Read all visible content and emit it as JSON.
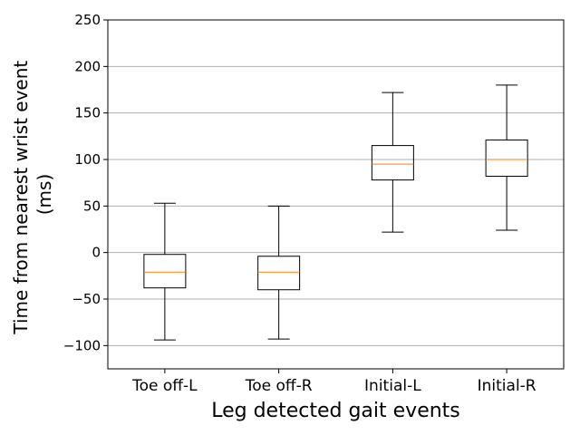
{
  "chart_data": {
    "type": "boxplot",
    "title": "",
    "xlabel": "Leg detected gait events",
    "ylabel_lines": [
      "Time from nearest wrist event",
      "(ms)"
    ],
    "ylim": [
      -125,
      250
    ],
    "yticks": [
      -100,
      -50,
      0,
      50,
      100,
      150,
      200,
      250
    ],
    "ytick_labels": [
      "−100",
      "−50",
      "0",
      "50",
      "100",
      "150",
      "200",
      "250"
    ],
    "grid": "y-major",
    "categories": [
      "Toe off-L",
      "Toe off-R",
      "Initial-L",
      "Initial-R"
    ],
    "boxes": [
      {
        "whisker_low": -94,
        "q1": -38,
        "median": -21,
        "q3": -2,
        "whisker_high": 53
      },
      {
        "whisker_low": -93,
        "q1": -40,
        "median": -21,
        "q3": -4,
        "whisker_high": 50
      },
      {
        "whisker_low": 22,
        "q1": 78,
        "median": 95,
        "q3": 115,
        "whisker_high": 172
      },
      {
        "whisker_low": 24,
        "q1": 82,
        "median": 100,
        "q3": 121,
        "whisker_high": 180
      }
    ],
    "colors": {
      "box": "#000000",
      "median": "#ff7f0e",
      "grid": "#b0b0b0",
      "axes": "#000000"
    }
  }
}
